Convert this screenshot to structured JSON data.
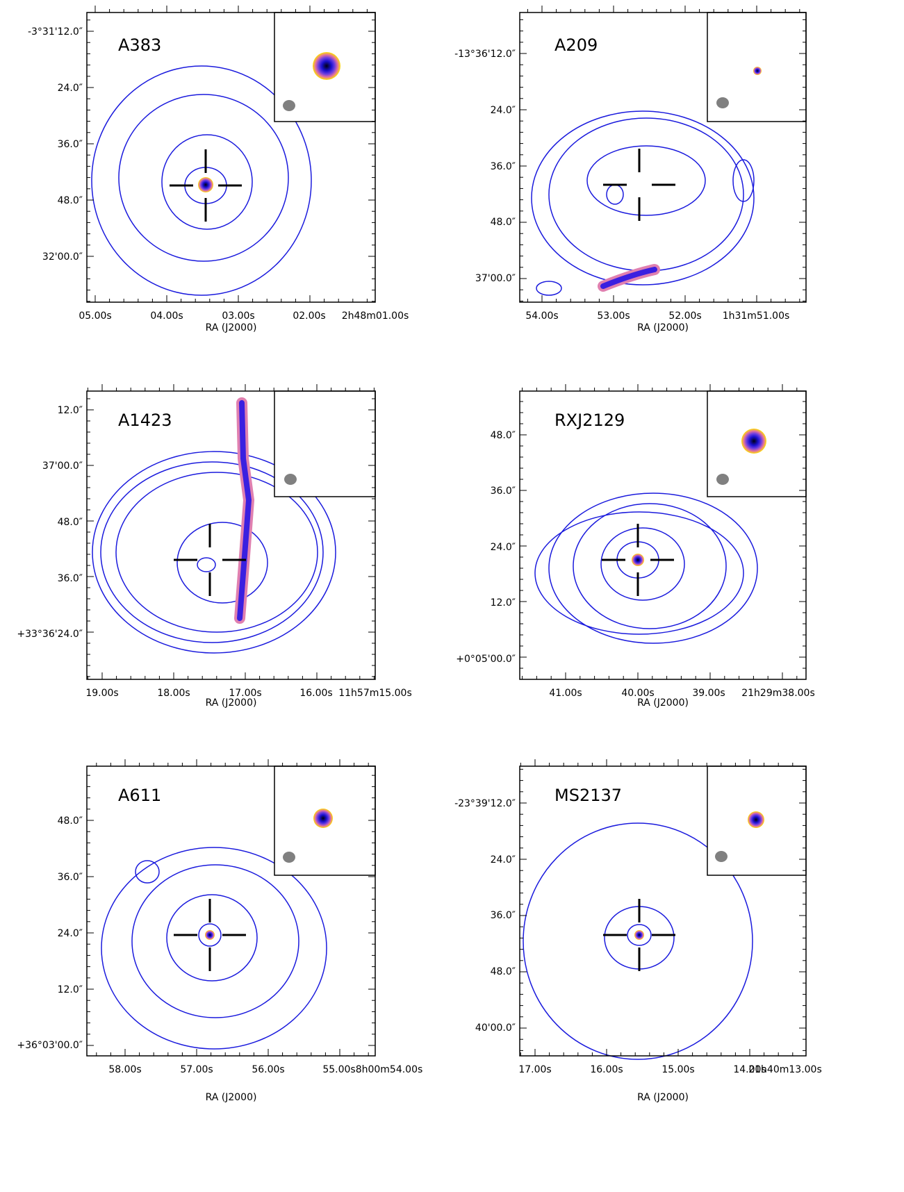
{
  "panels": [
    {
      "name": "A383",
      "yticks": [
        "-3°31'12.0″",
        "24.0″",
        "36.0″",
        "48.0″",
        "32'00.0″"
      ],
      "xticks": [
        "05.00s",
        "04.00s",
        "03.00s",
        "02.00s",
        "2h48m01.00s"
      ],
      "xlabel": "RA (J2000)"
    },
    {
      "name": "A209",
      "yticks": [
        "-13°36'12.0″",
        "24.0″",
        "36.0″",
        "48.0″",
        "37'00.0″"
      ],
      "xticks": [
        "54.00s",
        "53.00s",
        "52.00s",
        "1h31m51.00s"
      ],
      "xlabel": "RA (J2000)"
    },
    {
      "name": "A1423",
      "yticks": [
        "12.0″",
        "37'00.0″",
        "48.0″",
        "36.0″",
        "+33°36'24.0″"
      ],
      "xticks": [
        "19.00s",
        "18.00s",
        "17.00s",
        "16.00s",
        "11h57m15.00s"
      ],
      "xlabel": "RA (J2000)"
    },
    {
      "name": "RXJ2129",
      "yticks": [
        "48.0″",
        "36.0″",
        "24.0″",
        "12.0″",
        "+0°05'00.0″"
      ],
      "xticks": [
        "41.00s",
        "40.00s",
        "39.00s",
        "21h29m38.00s"
      ],
      "xlabel": "RA (J2000)"
    },
    {
      "name": "A611",
      "yticks": [
        "48.0″",
        "36.0″",
        "24.0″",
        "12.0″",
        "+36°03'00.0″"
      ],
      "xticks": [
        "58.00s",
        "57.00s",
        "56.00s",
        "55.00s",
        "8h00m54.00s"
      ],
      "xlabel": "RA (J2000)"
    },
    {
      "name": "MS2137",
      "yticks": [
        "-23°39'12.0″",
        "24.0″",
        "36.0″",
        "48.0″",
        "40'00.0″"
      ],
      "xticks": [
        "17.00s",
        "16.00s",
        "15.00s",
        "14.00s",
        "21h40m13.00s"
      ],
      "xlabel": "RA (J2000)"
    }
  ]
}
